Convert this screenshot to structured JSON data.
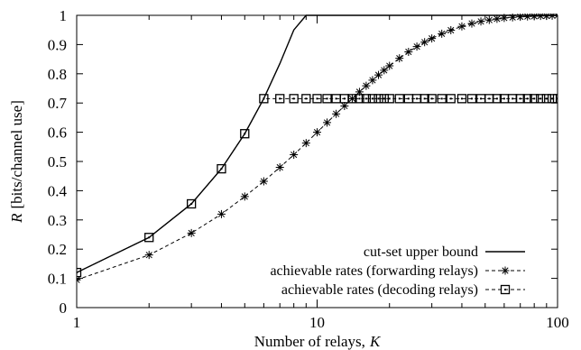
{
  "chart_data": {
    "type": "line",
    "x_scale": "log",
    "xlim": [
      1,
      100
    ],
    "ylim": [
      0,
      1
    ],
    "grid": false,
    "legend_position": "bottom-right",
    "x_ticks": [
      "1",
      "10",
      "100"
    ],
    "y_ticks": [
      "0",
      "0.1",
      "0.2",
      "0.3",
      "0.4",
      "0.5",
      "0.6",
      "0.7",
      "0.8",
      "0.9",
      "1"
    ],
    "xlabel_prefix": "Number of relays,",
    "xlabel_var": "K",
    "ylabel_var": "R",
    "ylabel_rest": "[bits/channel use]",
    "series": [
      {
        "name": "cut-set upper bound",
        "style": "solid",
        "marker": "none",
        "x": [
          1,
          2,
          3,
          4,
          5,
          6,
          7,
          8,
          9,
          10,
          20,
          50,
          100
        ],
        "y": [
          0.12,
          0.24,
          0.355,
          0.475,
          0.595,
          0.715,
          0.835,
          0.95,
          1.0,
          1.0,
          1.0,
          1.0,
          1.0
        ]
      },
      {
        "name": "achievable rates (forwarding relays)",
        "style": "dashed",
        "marker": "asterisk",
        "x": [
          1,
          2,
          3,
          4,
          5,
          6,
          7,
          8,
          9,
          10,
          11,
          12,
          13,
          14,
          15,
          16,
          17,
          18,
          19,
          20,
          22,
          24,
          26,
          28,
          30,
          33,
          36,
          40,
          44,
          48,
          52,
          56,
          60,
          65,
          70,
          75,
          80,
          85,
          90,
          95,
          100
        ],
        "y": [
          0.095,
          0.18,
          0.255,
          0.32,
          0.38,
          0.432,
          0.48,
          0.523,
          0.563,
          0.6,
          0.633,
          0.663,
          0.69,
          0.715,
          0.738,
          0.759,
          0.778,
          0.796,
          0.812,
          0.827,
          0.853,
          0.875,
          0.893,
          0.908,
          0.921,
          0.937,
          0.949,
          0.962,
          0.972,
          0.979,
          0.984,
          0.988,
          0.991,
          0.993,
          0.995,
          0.996,
          0.997,
          0.998,
          0.998,
          0.999,
          0.999
        ]
      },
      {
        "name": "achievable rates (decoding relays)",
        "style": "dashed",
        "marker": "square",
        "x": [
          1,
          2,
          3,
          4,
          5,
          6,
          7,
          8,
          9,
          10,
          11,
          12,
          13,
          14,
          15,
          16,
          17,
          18,
          19,
          20,
          22,
          24,
          26,
          28,
          30,
          33,
          36,
          40,
          44,
          48,
          52,
          56,
          60,
          65,
          70,
          75,
          80,
          85,
          90,
          95,
          100
        ],
        "y": [
          0.12,
          0.24,
          0.355,
          0.475,
          0.595,
          0.715,
          0.715,
          0.715,
          0.715,
          0.715,
          0.715,
          0.715,
          0.715,
          0.715,
          0.715,
          0.715,
          0.715,
          0.715,
          0.715,
          0.715,
          0.715,
          0.715,
          0.715,
          0.715,
          0.715,
          0.715,
          0.715,
          0.715,
          0.715,
          0.715,
          0.715,
          0.715,
          0.715,
          0.715,
          0.715,
          0.715,
          0.715,
          0.715,
          0.715,
          0.715,
          0.715
        ]
      }
    ]
  }
}
